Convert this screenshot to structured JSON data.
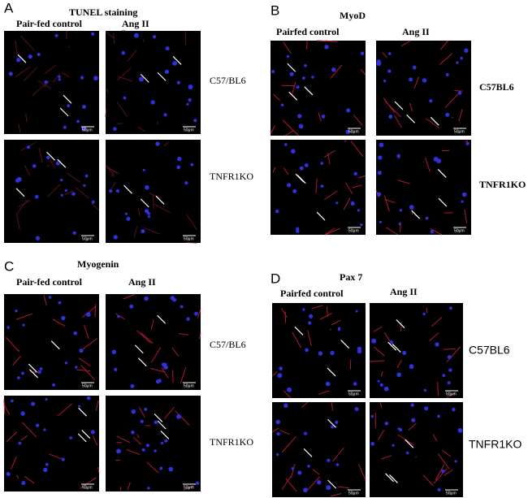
{
  "panels": [
    {
      "letter": "A",
      "title": "TUNEL staining",
      "column_headers": [
        "Pair-fed control",
        "Ang II"
      ],
      "row_labels": [
        "C57/BL6",
        "TNFR1KO"
      ],
      "scale_bar": "50μm"
    },
    {
      "letter": "B",
      "title": "MyoD",
      "column_headers": [
        "Pairfed control",
        "Ang II"
      ],
      "row_labels": [
        "C57BL6",
        "TNFR1KO"
      ],
      "scale_bar": "50μm"
    },
    {
      "letter": "C",
      "title": "Myogenin",
      "column_headers": [
        "Pair-fed control",
        "Ang II"
      ],
      "row_labels": [
        "C57/BL6",
        "TNFR1KO"
      ],
      "scale_bar": "50μm"
    },
    {
      "letter": "D",
      "title": "Pax 7",
      "column_headers": [
        "Pairfed control",
        "Ang II"
      ],
      "row_labels": [
        "C57BL6",
        "TNFR1KO"
      ],
      "scale_bar": "50μm"
    }
  ]
}
